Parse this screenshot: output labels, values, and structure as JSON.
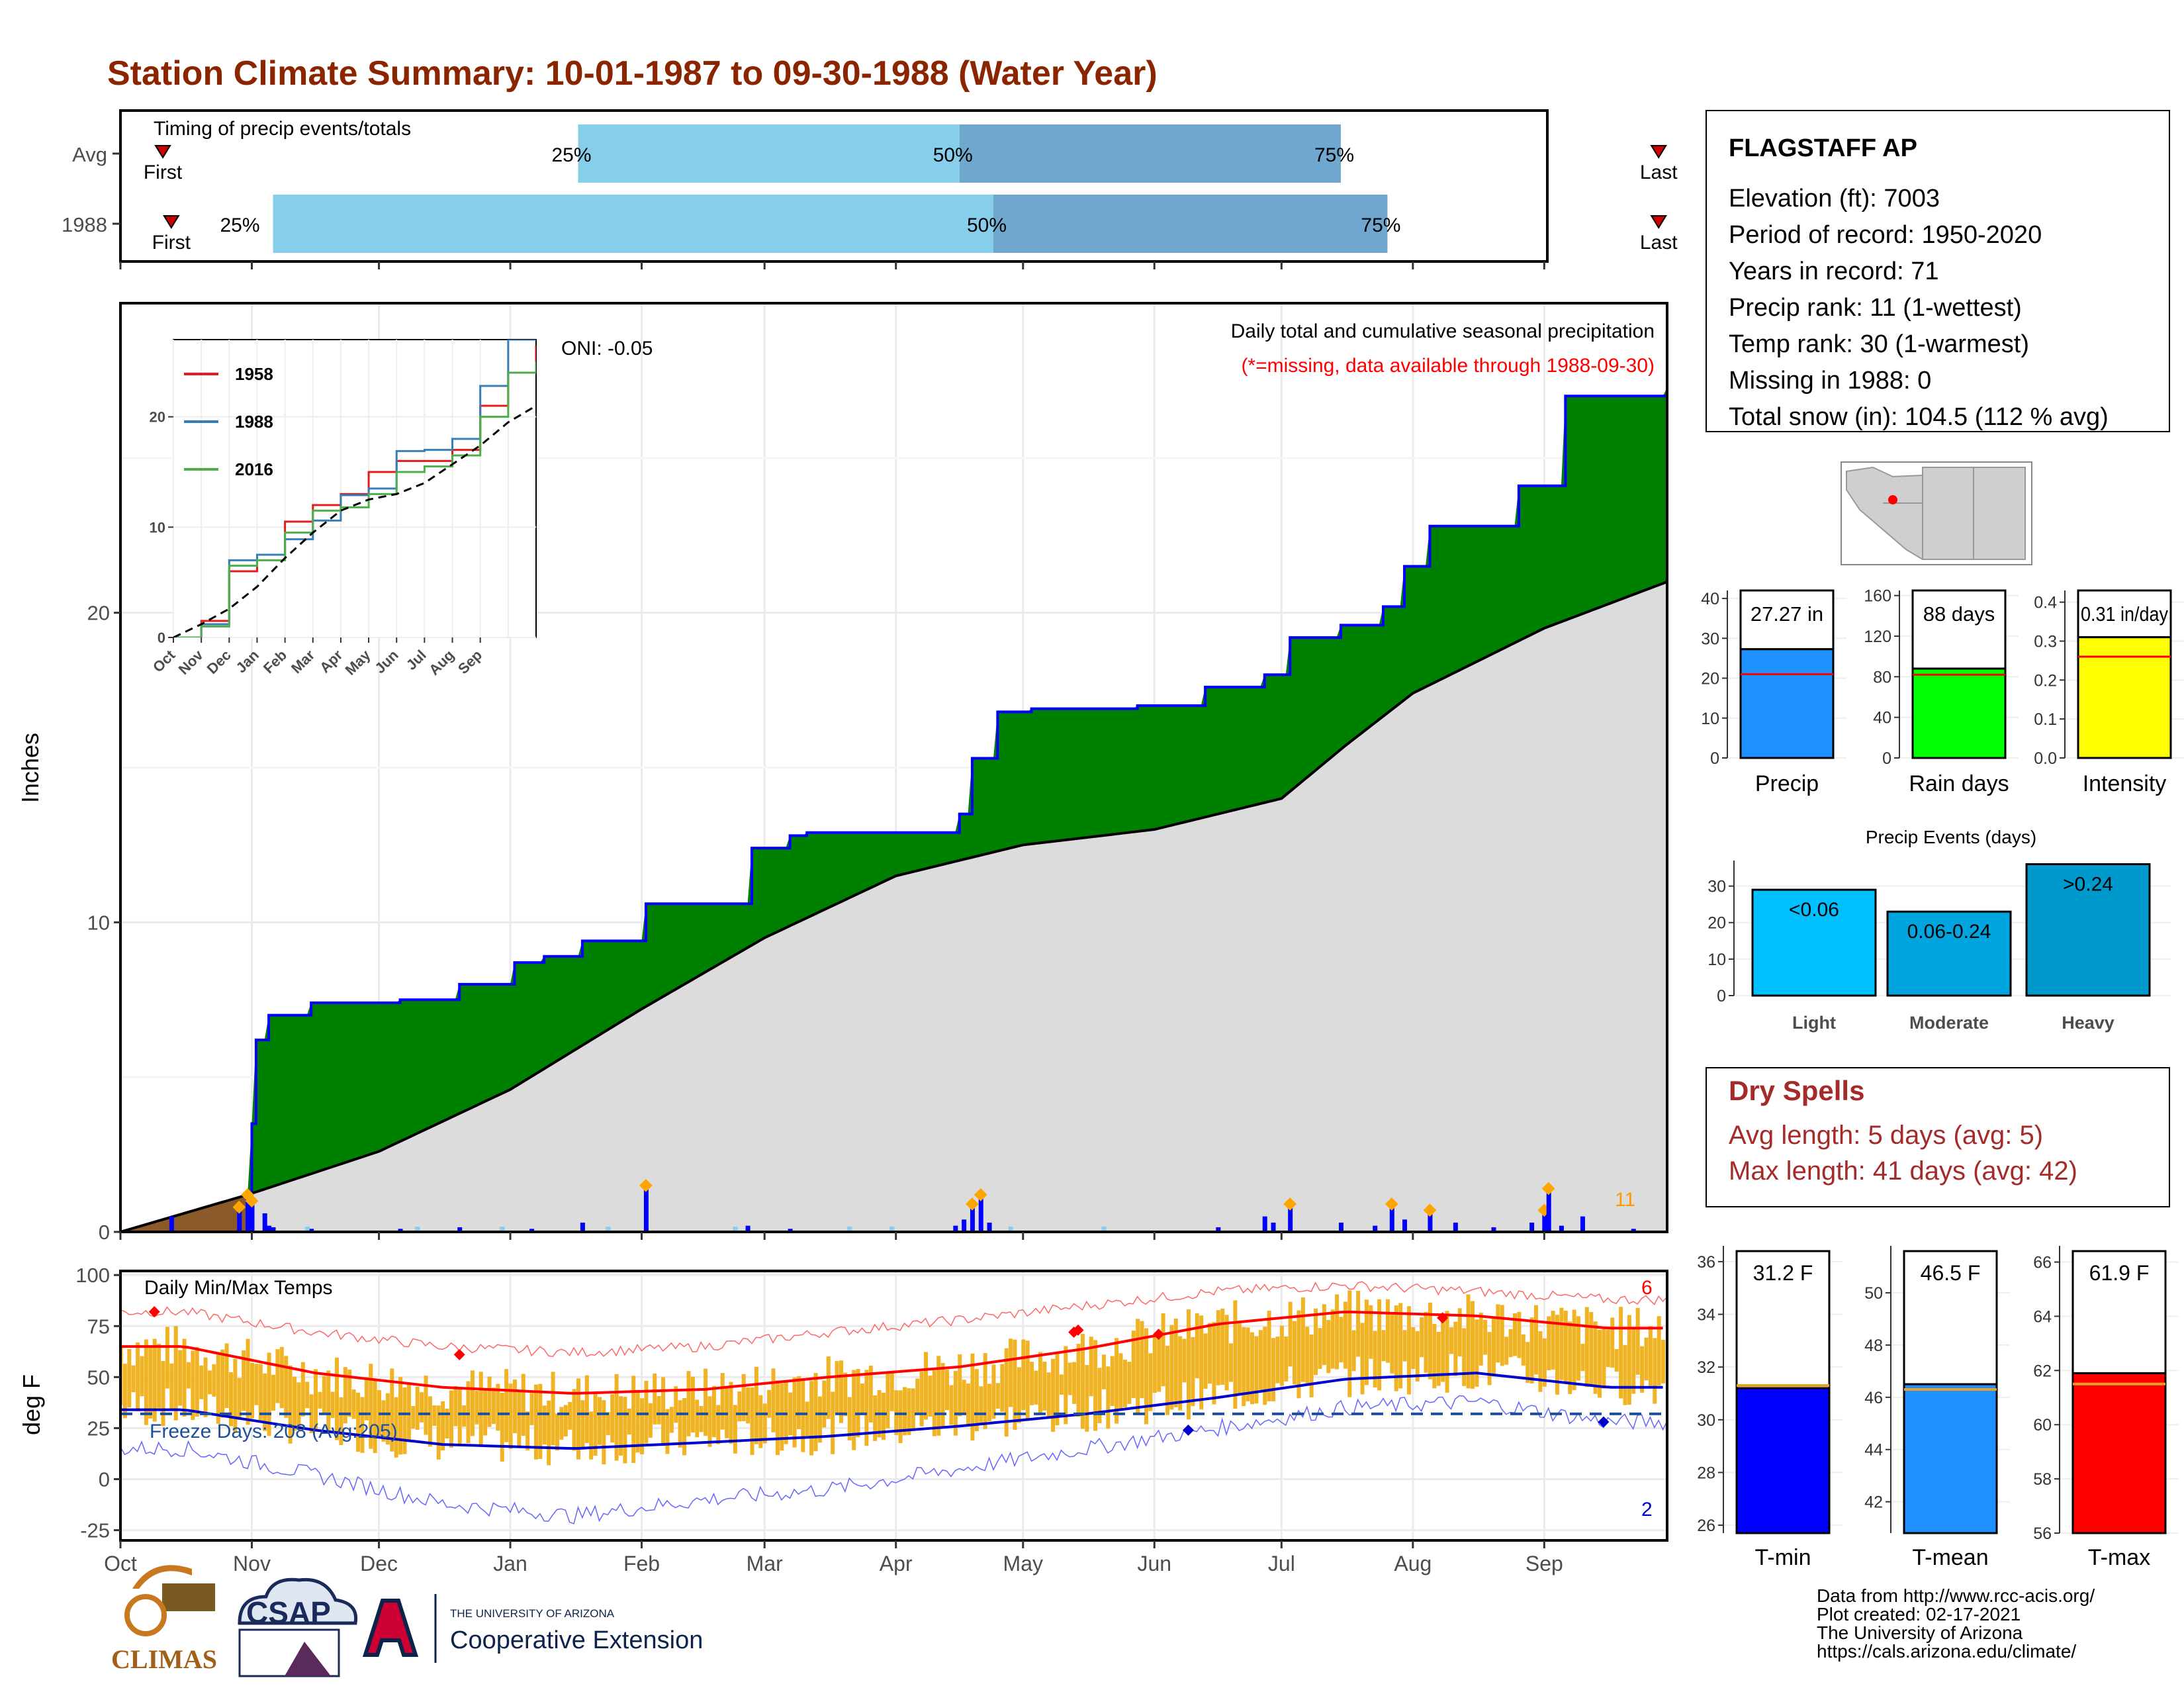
{
  "title": "Station Climate Summary: 10-01-1987 to 09-30-1988 (Water Year)",
  "colors": {
    "title": "#8B2500",
    "above_normal_precip": "#008000",
    "normal_precip": "#dcdcdc",
    "cumulative_line": "#0000ff",
    "daily_bar": "#0000ff",
    "snow_bar": "#87ceeb",
    "temp_bar": "#f0b323",
    "avg_max": "#ff0000",
    "avg_min": "#0000cc",
    "record_max": "#ff6666",
    "record_min": "#6666ff",
    "dry_spell_text": "#A52A2A"
  },
  "timing_panel": {
    "title": "Timing of precip events/totals",
    "rows": [
      {
        "label": "Avg",
        "first_label": "First",
        "last_label": "Last",
        "first_day": 10,
        "last_day": 363,
        "p25_day": 108,
        "p50_day": 198,
        "p75_day": 288,
        "p25_label": "25%",
        "p50_label": "50%",
        "p75_label": "75%"
      },
      {
        "label": "1988",
        "first_label": "First",
        "last_label": "Last",
        "first_day": 12,
        "last_day": 363,
        "p25_day": 36,
        "p50_day": 206,
        "p75_day": 299,
        "p25_label": "25%",
        "p50_label": "50%",
        "p75_label": "75%"
      }
    ]
  },
  "precip_panel": {
    "title": "Daily total and cumulative seasonal precipitation",
    "subtitle": "(*=missing, data available through 1988-09-30)",
    "oni": "ONI: -0.05",
    "ylabel": "Inches",
    "yticks": [
      0,
      10,
      20
    ],
    "ylim": [
      0,
      30
    ],
    "max_day_count": "11"
  },
  "inset_panel": {
    "yticks": [
      0,
      10,
      20
    ],
    "ylim": [
      0,
      27
    ],
    "months": [
      "Oct",
      "Nov",
      "Dec",
      "Jan",
      "Feb",
      "Mar",
      "Apr",
      "May",
      "Jun",
      "Jul",
      "Aug",
      "Sep"
    ],
    "legend": [
      {
        "name": "1958",
        "color": "#e41a1c"
      },
      {
        "name": "1988",
        "color": "#377eb8"
      },
      {
        "name": "2016",
        "color": "#4daf4a"
      }
    ]
  },
  "temp_panel": {
    "title": "Daily Min/Max Temps",
    "ylabel": "deg F",
    "yticks": [
      -25,
      0,
      25,
      50,
      75,
      100
    ],
    "ylim": [
      -30,
      102
    ],
    "freeze_label": "Freeze Days: 208 (Avg:205)",
    "freeze_line": 32,
    "record_highs_count": "6",
    "record_lows_count": "2"
  },
  "months": [
    "Oct",
    "Nov",
    "Dec",
    "Jan",
    "Feb",
    "Mar",
    "Apr",
    "May",
    "Jun",
    "Jul",
    "Aug",
    "Sep"
  ],
  "station": {
    "name": "FLAGSTAFF AP",
    "lines": [
      "Elevation (ft): 7003",
      "Period of record: 1950-2020",
      "Years in record: 71",
      "Precip rank: 11 (1-wettest)",
      "Temp rank: 30 (1-warmest)",
      "Missing in 1988: 0",
      "Total snow (in): 104.5 (112 % avg)"
    ]
  },
  "summary_bars": [
    {
      "label": "Precip",
      "value": 27.27,
      "value_label": "27.27 in",
      "avg": 21.0,
      "ylim": [
        0,
        42
      ],
      "yticks": [
        "0",
        "10",
        "20",
        "30",
        "40"
      ],
      "color": "#1e90ff"
    },
    {
      "label": "Rain days",
      "value": 88,
      "value_label": "88 days",
      "avg": 82,
      "ylim": [
        0,
        165
      ],
      "yticks": [
        "0",
        "40",
        "80",
        "120",
        "160"
      ],
      "color": "#00ff00"
    },
    {
      "label": "Intensity",
      "value": 0.31,
      "value_label": "0.31 in/day",
      "avg": 0.26,
      "ylim": [
        0,
        0.43
      ],
      "yticks": [
        "0.0",
        "0.1",
        "0.2",
        "0.3",
        "0.4"
      ],
      "color": "#ffff00"
    }
  ],
  "precip_events": {
    "title": "Precip Events (days)",
    "yticks": [
      0,
      10,
      20,
      30
    ],
    "ylim": [
      0,
      37
    ],
    "categories": [
      "Light",
      "Moderate",
      "Heavy"
    ],
    "labels": [
      "<0.06",
      "0.06-0.24",
      ">0.24"
    ],
    "values": [
      29,
      23,
      36
    ],
    "colors": [
      "#00bfff",
      "#00a5e0",
      "#0099cc"
    ]
  },
  "dry_spells": {
    "title": "Dry Spells",
    "avg_line": "Avg length: 5 days (avg: 5)",
    "max_line": "Max length: 41 days (avg: 42)"
  },
  "temp_summary": [
    {
      "label": "T-min",
      "value": 31.2,
      "value_label": "31.2 F",
      "avg": 31.3,
      "ylim": [
        25.7,
        36.6
      ],
      "yticks": [
        "26",
        "28",
        "30",
        "32",
        "34",
        "36"
      ],
      "color": "#0000ff"
    },
    {
      "label": "T-mean",
      "value": 46.5,
      "value_label": "46.5 F",
      "avg": 46.3,
      "ylim": [
        40.8,
        51.8
      ],
      "yticks": [
        "42",
        "44",
        "46",
        "48",
        "50"
      ],
      "color": "#1e90ff"
    },
    {
      "label": "T-max",
      "value": 61.9,
      "value_label": "61.9 F",
      "avg": 61.5,
      "ylim": [
        56.0,
        66.6
      ],
      "yticks": [
        "56",
        "58",
        "60",
        "62",
        "64",
        "66"
      ],
      "color": "#ff0000"
    }
  ],
  "footer": {
    "lines": [
      "Data from http://www.rcc-acis.org/",
      "Plot created: 02-17-2021",
      "The University of Arizona",
      "https://cals.arizona.edu/climate/"
    ]
  },
  "logos": {
    "climas": "CLIMAS",
    "csap": "CSAP",
    "ua_small": "THE UNIVERSITY OF ARIZONA",
    "ua_big": "Cooperative Extension"
  },
  "chart_data": {
    "type": "area",
    "title": "Daily total and cumulative seasonal precipitation",
    "xlabel": "",
    "ylabel": "Inches",
    "ylim": [
      0,
      30
    ],
    "months": [
      "Oct",
      "Nov",
      "Dec",
      "Jan",
      "Feb",
      "Mar",
      "Apr",
      "May",
      "Jun",
      "Jul",
      "Aug",
      "Sep"
    ],
    "cumulative_1988": [
      {
        "day": 0,
        "value": 0.0
      },
      {
        "day": 30,
        "value": 1.2
      },
      {
        "day": 31,
        "value": 3.5
      },
      {
        "day": 32,
        "value": 6.2
      },
      {
        "day": 35,
        "value": 7.0
      },
      {
        "day": 45,
        "value": 7.4
      },
      {
        "day": 66,
        "value": 7.5
      },
      {
        "day": 80,
        "value": 8.0
      },
      {
        "day": 93,
        "value": 8.7
      },
      {
        "day": 100,
        "value": 8.9
      },
      {
        "day": 109,
        "value": 9.4
      },
      {
        "day": 124,
        "value": 10.6
      },
      {
        "day": 149,
        "value": 12.4
      },
      {
        "day": 158,
        "value": 12.8
      },
      {
        "day": 162,
        "value": 12.9
      },
      {
        "day": 198,
        "value": 13.5
      },
      {
        "day": 201,
        "value": 15.3
      },
      {
        "day": 207,
        "value": 16.8
      },
      {
        "day": 215,
        "value": 16.9
      },
      {
        "day": 240,
        "value": 17.0
      },
      {
        "day": 256,
        "value": 17.6
      },
      {
        "day": 270,
        "value": 18.0
      },
      {
        "day": 276,
        "value": 19.2
      },
      {
        "day": 288,
        "value": 19.6
      },
      {
        "day": 298,
        "value": 20.2
      },
      {
        "day": 303,
        "value": 21.5
      },
      {
        "day": 309,
        "value": 22.8
      },
      {
        "day": 330,
        "value": 24.1
      },
      {
        "day": 341,
        "value": 27.0
      },
      {
        "day": 365,
        "value": 27.27
      }
    ],
    "cumulative_avg": [
      {
        "day": 0,
        "value": 0
      },
      {
        "day": 30,
        "value": 1.2
      },
      {
        "day": 61,
        "value": 2.6
      },
      {
        "day": 92,
        "value": 4.6
      },
      {
        "day": 123,
        "value": 7.2
      },
      {
        "day": 152,
        "value": 9.5
      },
      {
        "day": 183,
        "value": 11.5
      },
      {
        "day": 213,
        "value": 12.5
      },
      {
        "day": 244,
        "value": 13.0
      },
      {
        "day": 274,
        "value": 14.0
      },
      {
        "day": 289,
        "value": 15.7
      },
      {
        "day": 305,
        "value": 17.4
      },
      {
        "day": 336,
        "value": 19.5
      },
      {
        "day": 365,
        "value": 21.0
      }
    ],
    "daily_precip": [
      {
        "day": 12,
        "value": 0.5
      },
      {
        "day": 28,
        "value": 0.8
      },
      {
        "day": 30,
        "value": 1.2
      },
      {
        "day": 31,
        "value": 1.0
      },
      {
        "day": 34,
        "value": 0.6
      },
      {
        "day": 35,
        "value": 0.2
      },
      {
        "day": 36,
        "value": 0.15
      },
      {
        "day": 45,
        "value": 0.1
      },
      {
        "day": 66,
        "value": 0.1
      },
      {
        "day": 80,
        "value": 0.15
      },
      {
        "day": 97,
        "value": 0.1
      },
      {
        "day": 109,
        "value": 0.3
      },
      {
        "day": 124,
        "value": 1.5
      },
      {
        "day": 148,
        "value": 0.2
      },
      {
        "day": 158,
        "value": 0.1
      },
      {
        "day": 197,
        "value": 0.2
      },
      {
        "day": 199,
        "value": 0.4
      },
      {
        "day": 201,
        "value": 0.9
      },
      {
        "day": 203,
        "value": 1.2
      },
      {
        "day": 205,
        "value": 0.3
      },
      {
        "day": 259,
        "value": 0.15
      },
      {
        "day": 270,
        "value": 0.5
      },
      {
        "day": 272,
        "value": 0.3
      },
      {
        "day": 276,
        "value": 0.9
      },
      {
        "day": 288,
        "value": 0.3
      },
      {
        "day": 296,
        "value": 0.2
      },
      {
        "day": 300,
        "value": 0.9
      },
      {
        "day": 303,
        "value": 0.4
      },
      {
        "day": 309,
        "value": 0.7
      },
      {
        "day": 315,
        "value": 0.3
      },
      {
        "day": 324,
        "value": 0.15
      },
      {
        "day": 333,
        "value": 0.3
      },
      {
        "day": 336,
        "value": 0.7
      },
      {
        "day": 337,
        "value": 1.4
      },
      {
        "day": 340,
        "value": 0.2
      },
      {
        "day": 345,
        "value": 0.5
      },
      {
        "day": 357,
        "value": 0.1
      }
    ],
    "inset_cumulative": [
      {
        "name": "1958",
        "values": [
          0,
          1.5,
          6.0,
          7.5,
          10.5,
          12.0,
          13.0,
          15.0,
          16.0,
          16.0,
          17.0,
          21.0,
          24.0,
          26.5
        ]
      },
      {
        "name": "1988",
        "values": [
          0,
          1.2,
          7.0,
          7.5,
          8.9,
          10.6,
          12.9,
          13.5,
          16.9,
          17.0,
          18.0,
          22.8,
          27.0,
          27.27
        ]
      },
      {
        "name": "2016",
        "values": [
          0,
          1.0,
          6.5,
          7.0,
          9.5,
          11.5,
          11.8,
          13.0,
          15.0,
          15.5,
          16.5,
          20.0,
          24.0,
          25.0
        ]
      },
      {
        "name": "avg",
        "values": [
          0,
          1.2,
          2.6,
          4.6,
          7.2,
          9.5,
          11.5,
          12.5,
          13.0,
          14.0,
          15.7,
          17.4,
          19.5,
          21.0
        ]
      }
    ],
    "temperature": {
      "avg_max_monthly": [
        65,
        52,
        45,
        42,
        44,
        50,
        55,
        64,
        76,
        82,
        80,
        74
      ],
      "avg_min_monthly": [
        34,
        24,
        17,
        15,
        18,
        21,
        26,
        32,
        40,
        49,
        52,
        45
      ],
      "record_max_monthly": [
        82,
        72,
        65,
        62,
        65,
        72,
        78,
        85,
        92,
        95,
        92,
        88
      ],
      "record_min_monthly": [
        15,
        2,
        -12,
        -18,
        -10,
        -5,
        5,
        15,
        25,
        35,
        38,
        28
      ]
    }
  }
}
